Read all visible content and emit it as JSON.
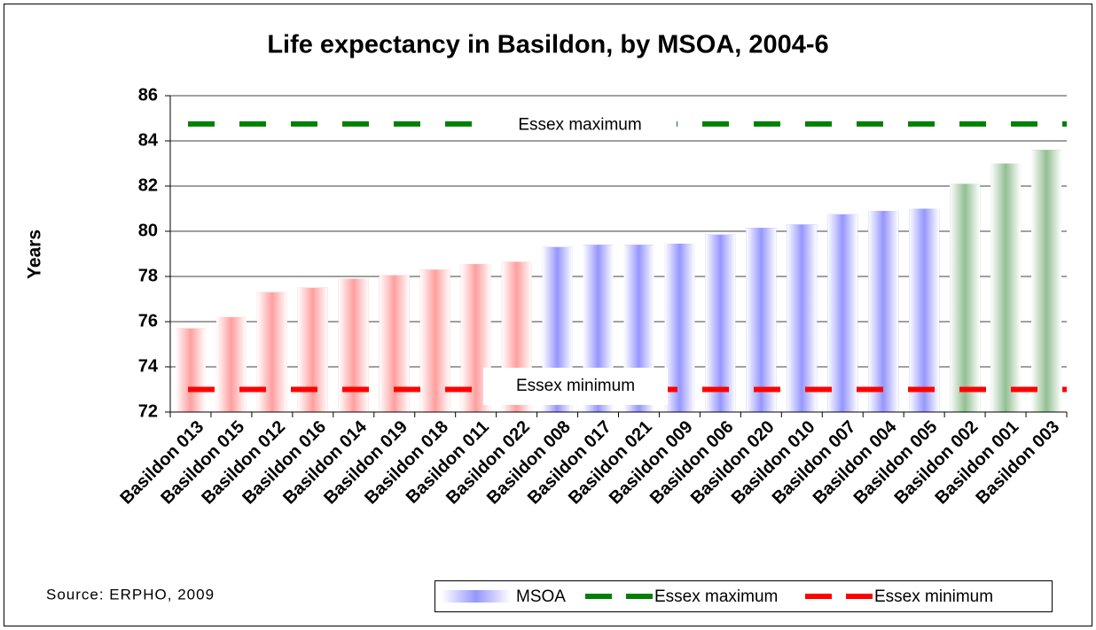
{
  "chart_data": {
    "type": "bar",
    "title": "Life expectancy in Basildon, by MSOA, 2004-6",
    "y_label": "Years",
    "source": "Source: ERPHO, 2009",
    "categories": [
      "Basildon 013",
      "Basildon 015",
      "Basildon 012",
      "Basildon 016",
      "Basildon 014",
      "Basildon 019",
      "Basildon 018",
      "Basildon 011",
      "Basildon 022",
      "Basildon 008",
      "Basildon 017",
      "Basildon 021",
      "Basildon 009",
      "Basildon 006",
      "Basildon 020",
      "Basildon 010",
      "Basildon 007",
      "Basildon 004",
      "Basildon 005",
      "Basildon 002",
      "Basildon 001",
      "Basildon 003"
    ],
    "series": [
      {
        "name": "MSOA",
        "color": "#4040ff",
        "values": [
          75.7,
          76.2,
          77.3,
          77.5,
          77.9,
          78.05,
          78.3,
          78.55,
          78.65,
          79.3,
          79.4,
          79.4,
          79.45,
          79.85,
          80.15,
          80.3,
          80.75,
          80.9,
          81.0,
          82.1,
          83.0,
          83.6
        ],
        "colors": [
          "#ff5050",
          "#ff5050",
          "#ff5050",
          "#ff5050",
          "#ff5050",
          "#ff5050",
          "#ff5050",
          "#ff5050",
          "#ff5050",
          "#4040ff",
          "#4040ff",
          "#4040ff",
          "#4040ff",
          "#4040ff",
          "#4040ff",
          "#4040ff",
          "#4040ff",
          "#4040ff",
          "#4040ff",
          "#3a8a3a",
          "#3a8a3a",
          "#3a8a3a"
        ]
      }
    ],
    "reference_lines": [
      {
        "name": "Essex maximum",
        "value": 84.75,
        "color": "#008000"
      },
      {
        "name": "Essex minimum",
        "value": 73.0,
        "color": "#ff0000"
      }
    ],
    "ylim": [
      72,
      86
    ],
    "yticks": [
      72,
      74,
      76,
      78,
      80,
      82,
      84,
      86
    ],
    "grid": true
  }
}
